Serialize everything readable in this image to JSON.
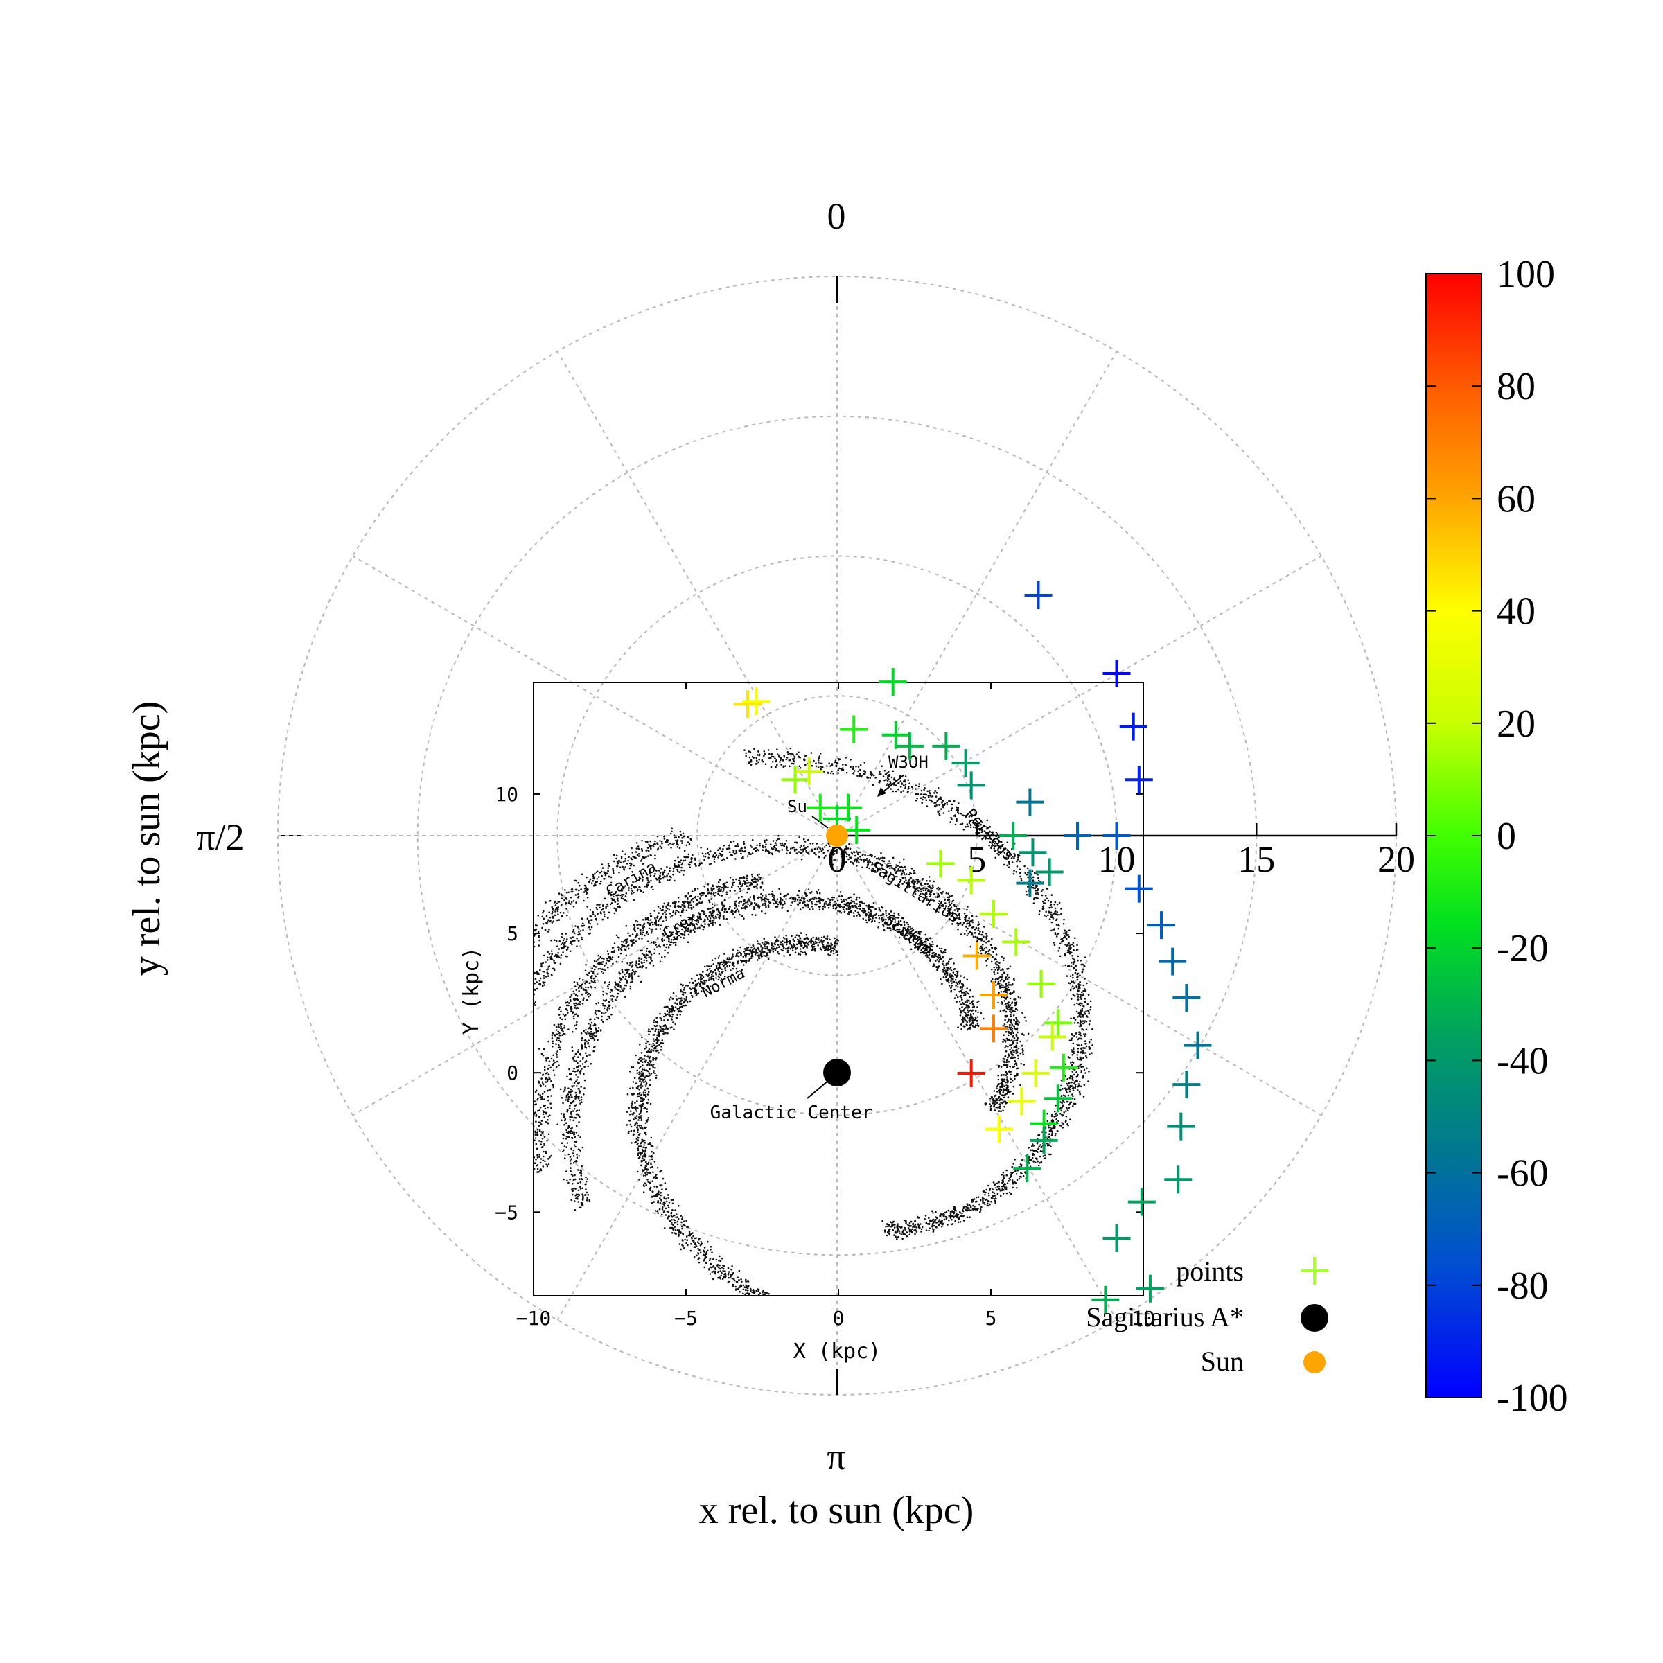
{
  "chart_data": {
    "type": "scatter",
    "projection": "polar",
    "xlabel": "x rel. to sun (kpc)",
    "ylabel": "y rel. to sun (kpc)",
    "angular_ticks": [
      "0",
      "π/2",
      "π"
    ],
    "radial_ticks": [
      0,
      5,
      10,
      15,
      20
    ],
    "rlim": [
      0,
      20
    ],
    "grid": true,
    "legend_position": "bottom-right",
    "colorbar": {
      "min": -100,
      "max": 100,
      "ticks": [
        100,
        80,
        60,
        40,
        20,
        0,
        -20,
        -40,
        -60,
        -80,
        -100
      ],
      "colors": [
        "#0000ff",
        "#0080ff",
        "#00a0a0",
        "#00c000",
        "#40ff00",
        "#c0ff00",
        "#ffff00",
        "#ffc000",
        "#ff8000",
        "#ff4000",
        "#ff0000"
      ]
    },
    "legend": [
      {
        "label": "points",
        "marker": "plus",
        "color": "#aaff33"
      },
      {
        "label": "Sagittarius A*",
        "marker": "circle",
        "color": "#000000"
      },
      {
        "label": "Sun",
        "marker": "circle",
        "color": "#ffa500"
      }
    ],
    "points": [
      {
        "x": 7.2,
        "y": 8.6,
        "v": -80
      },
      {
        "x": 10.0,
        "y": 5.8,
        "v": -98
      },
      {
        "x": 10.6,
        "y": 3.9,
        "v": -92
      },
      {
        "x": 10.8,
        "y": 2.0,
        "v": -90
      },
      {
        "x": 10.0,
        "y": 0.0,
        "v": -72
      },
      {
        "x": 8.6,
        "y": 0.0,
        "v": -66
      },
      {
        "x": 10.8,
        "y": -1.9,
        "v": -75
      },
      {
        "x": 11.6,
        "y": -3.2,
        "v": -72
      },
      {
        "x": 12.0,
        "y": -4.5,
        "v": -65
      },
      {
        "x": 12.5,
        "y": -5.8,
        "v": -60
      },
      {
        "x": 12.9,
        "y": -7.5,
        "v": -58
      },
      {
        "x": 12.5,
        "y": -8.9,
        "v": -52
      },
      {
        "x": 12.3,
        "y": -10.4,
        "v": -45
      },
      {
        "x": 12.2,
        "y": -12.3,
        "v": -40
      },
      {
        "x": 10.9,
        "y": -13.1,
        "v": -36
      },
      {
        "x": 10.0,
        "y": -14.4,
        "v": -38
      },
      {
        "x": 11.2,
        "y": -16.2,
        "v": -35
      },
      {
        "x": 9.6,
        "y": -16.6,
        "v": -32
      },
      {
        "x": 2.0,
        "y": 5.5,
        "v": -18
      },
      {
        "x": 0.6,
        "y": 3.8,
        "v": -8
      },
      {
        "x": 2.1,
        "y": 3.6,
        "v": -20
      },
      {
        "x": 2.6,
        "y": 3.2,
        "v": -28
      },
      {
        "x": 3.9,
        "y": 3.2,
        "v": -32
      },
      {
        "x": 4.6,
        "y": 2.6,
        "v": -38
      },
      {
        "x": 4.8,
        "y": 1.8,
        "v": -42
      },
      {
        "x": 6.9,
        "y": 1.2,
        "v": -58
      },
      {
        "x": 6.3,
        "y": 0.0,
        "v": -32
      },
      {
        "x": 7.0,
        "y": -0.6,
        "v": -42
      },
      {
        "x": 7.6,
        "y": -1.3,
        "v": -40
      },
      {
        "x": 6.9,
        "y": -1.7,
        "v": -54
      },
      {
        "x": 0.4,
        "y": 1.0,
        "v": -14
      },
      {
        "x": -0.6,
        "y": 1.0,
        "v": -10
      },
      {
        "x": 0.0,
        "y": 0.6,
        "v": -18
      },
      {
        "x": 0.7,
        "y": 0.2,
        "v": -14
      },
      {
        "x": -1.5,
        "y": 2.0,
        "v": 12
      },
      {
        "x": -1.0,
        "y": 2.3,
        "v": 22
      },
      {
        "x": -3.2,
        "y": 4.7,
        "v": 46
      },
      {
        "x": -2.9,
        "y": 4.8,
        "v": 36
      },
      {
        "x": 3.7,
        "y": -1.0,
        "v": 14
      },
      {
        "x": 4.8,
        "y": -1.6,
        "v": 18
      },
      {
        "x": 5.6,
        "y": -2.8,
        "v": 16
      },
      {
        "x": 6.4,
        "y": -3.8,
        "v": 15
      },
      {
        "x": 7.3,
        "y": -5.3,
        "v": 12
      },
      {
        "x": 7.9,
        "y": -6.7,
        "v": 8
      },
      {
        "x": 7.7,
        "y": -7.2,
        "v": 20
      },
      {
        "x": 8.1,
        "y": -8.3,
        "v": -8
      },
      {
        "x": 7.1,
        "y": -8.5,
        "v": 26
      },
      {
        "x": 7.9,
        "y": -9.4,
        "v": -24
      },
      {
        "x": 6.6,
        "y": -9.5,
        "v": 30
      },
      {
        "x": 7.4,
        "y": -10.3,
        "v": -14
      },
      {
        "x": 5.8,
        "y": -10.5,
        "v": 38
      },
      {
        "x": 7.4,
        "y": -10.9,
        "v": -34
      },
      {
        "x": 6.8,
        "y": -11.9,
        "v": -30
      },
      {
        "x": 5.0,
        "y": -4.3,
        "v": 58
      },
      {
        "x": 5.6,
        "y": -5.7,
        "v": 62
      },
      {
        "x": 5.6,
        "y": -6.9,
        "v": 70
      },
      {
        "x": 4.8,
        "y": -8.5,
        "v": 95
      }
    ],
    "sun": {
      "r": 0
    },
    "inset": {
      "xlabel": "X (kpc)",
      "ylabel": "Y (kpc)",
      "xlim": [
        -10,
        10
      ],
      "ylim": [
        -8,
        14
      ],
      "xticks": [
        -10,
        -5,
        0,
        5,
        10
      ],
      "yticks": [
        -5,
        0,
        5,
        10
      ],
      "sun": {
        "x": 0,
        "y": 8.5
      },
      "galactic_center": {
        "x": 0,
        "y": 0
      },
      "arms": [
        {
          "name": "Norma",
          "start": 90,
          "end": 260,
          "r0": 3.2,
          "b": 0.22
        },
        {
          "name": "Scutum",
          "start": 20,
          "end": 210,
          "r0": 4.3,
          "b": 0.22
        },
        {
          "name": "Sagittarius",
          "start": -15,
          "end": 170,
          "r0": 5.6,
          "b": 0.22
        },
        {
          "name": "Perseus",
          "start": -75,
          "end": 105,
          "r0": 7.8,
          "b": 0.22
        },
        {
          "name": "Carina",
          "start": 120,
          "end": 200,
          "r0": 6.2,
          "b": 0.22
        },
        {
          "name": "Crux",
          "start": 110,
          "end": 200,
          "r0": 4.8,
          "b": 0.22
        }
      ],
      "labels": [
        "Carina",
        "Crux",
        "Norma",
        "Sagittarius",
        "Scutum",
        "Perseus",
        "W3OH",
        "Su",
        "Galactic Center"
      ]
    }
  }
}
